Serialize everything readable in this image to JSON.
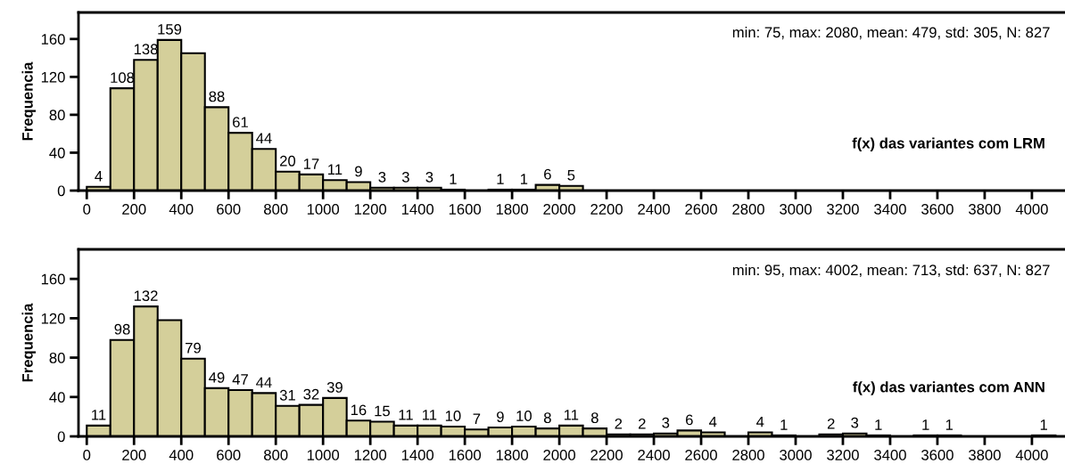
{
  "chart_data": [
    {
      "type": "histogram",
      "title": "f(x) das variantes com LRM",
      "ylabel": "Frequencia",
      "annotations": [
        "min: 75, max: 2080, mean: 479, std: 305, N: 827"
      ],
      "bins": [
        0,
        100,
        200,
        300,
        400,
        500,
        600,
        700,
        800,
        900,
        1000,
        1100,
        1200,
        1300,
        1400,
        1500,
        1600,
        1700,
        1800,
        1900,
        2000,
        2100
      ],
      "values": [
        4,
        108,
        138,
        159,
        145,
        88,
        61,
        44,
        20,
        17,
        11,
        9,
        3,
        3,
        3,
        1,
        0,
        1,
        1,
        6,
        5
      ],
      "value_labels": [
        "4",
        "108",
        "138",
        "159",
        null,
        "88",
        "61",
        "44",
        "20",
        "17",
        "11",
        "9",
        "3",
        "3",
        "3",
        "1",
        null,
        "1",
        "1",
        "6",
        "5"
      ],
      "color": "#d4cf9a",
      "xlim": [
        -35,
        4140
      ],
      "ylim": [
        0,
        188
      ],
      "xticks": [
        0,
        200,
        400,
        600,
        800,
        1000,
        1200,
        1400,
        1600,
        1800,
        2000,
        2200,
        2400,
        2600,
        2800,
        3000,
        3200,
        3400,
        3600,
        3800,
        4000
      ],
      "yticks": [
        0,
        40,
        80,
        120,
        160
      ],
      "grid": false,
      "legend": false
    },
    {
      "type": "histogram",
      "title": "f(x) das variantes com ANN",
      "ylabel": "Frequencia",
      "annotations": [
        "min: 95, max: 4002, mean: 713, std: 637, N: 827"
      ],
      "bins": [
        0,
        100,
        200,
        300,
        400,
        500,
        600,
        700,
        800,
        900,
        1000,
        1100,
        1200,
        1300,
        1400,
        1500,
        1600,
        1700,
        1800,
        1900,
        2000,
        2100,
        2200,
        2300,
        2400,
        2500,
        2600,
        2700,
        2800,
        2900,
        3000,
        3100,
        3200,
        3300,
        3400,
        3500,
        3600,
        3700,
        3800,
        3900,
        4000,
        4100
      ],
      "values": [
        11,
        98,
        132,
        118,
        79,
        49,
        47,
        44,
        31,
        32,
        39,
        16,
        15,
        11,
        11,
        10,
        7,
        9,
        10,
        8,
        11,
        8,
        2,
        2,
        3,
        6,
        4,
        0,
        4,
        1,
        0,
        2,
        3,
        1,
        0,
        1,
        1,
        0,
        0,
        0,
        1
      ],
      "value_labels": [
        "11",
        "98",
        "132",
        null,
        "79",
        "49",
        "47",
        "44",
        "31",
        "32",
        "39",
        "16",
        "15",
        "11",
        "11",
        "10",
        "7",
        "9",
        "10",
        "8",
        "11",
        "8",
        "2",
        "2",
        "3",
        "6",
        "4",
        null,
        "4",
        "1",
        null,
        "2",
        "3",
        "1",
        null,
        "1",
        "1",
        null,
        null,
        null,
        "1"
      ],
      "color": "#d4cf9a",
      "xlim": [
        -35,
        4140
      ],
      "ylim": [
        0,
        190
      ],
      "xticks": [
        0,
        200,
        400,
        600,
        800,
        1000,
        1200,
        1400,
        1600,
        1800,
        2000,
        2200,
        2400,
        2600,
        2800,
        3000,
        3200,
        3400,
        3600,
        3800,
        4000
      ],
      "yticks": [
        0,
        40,
        80,
        120,
        160
      ],
      "grid": false,
      "legend": false
    }
  ]
}
